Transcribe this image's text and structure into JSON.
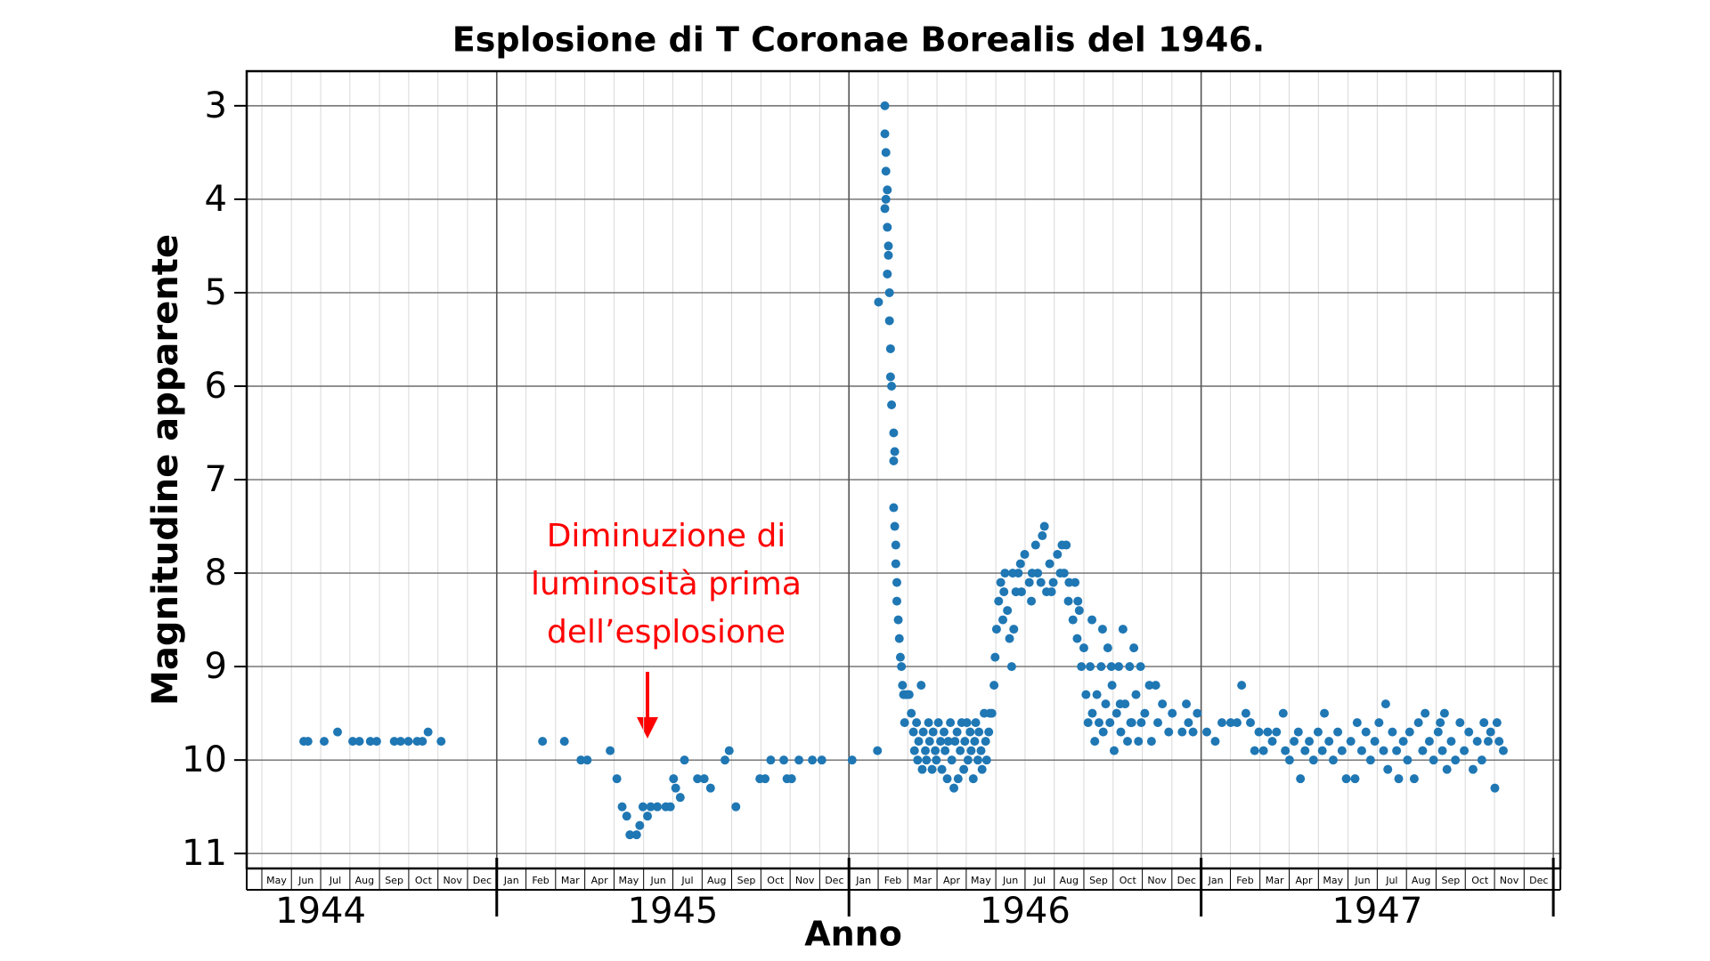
{
  "chart_data": {
    "type": "scatter",
    "title": "Esplosione di T Coronae Borealis del 1946.",
    "x_label": "Anno",
    "y_label": "Magnitudine apparente",
    "annotation": [
      "Diminuzione di",
      "luminosità prima",
      "dell’esplosione"
    ],
    "annotation_color": "#ff0000",
    "color": "#1f77b4",
    "grid": true,
    "ylim": [
      11.16,
      2.63
    ],
    "yticks": [
      3,
      4,
      5,
      6,
      7,
      8,
      9,
      10,
      11
    ],
    "xlim": [
      1944.29,
      1948.02
    ],
    "xticks": [
      1945,
      1946,
      1947,
      1948
    ],
    "year_labels": [
      1944,
      1945,
      1946,
      1947
    ],
    "month_ticks": [
      {
        "value": 1944.333,
        "label": "May"
      },
      {
        "value": 1944.417,
        "label": "Jun"
      },
      {
        "value": 1944.5,
        "label": "Jul"
      },
      {
        "value": 1944.583,
        "label": "Aug"
      },
      {
        "value": 1944.667,
        "label": "Sep"
      },
      {
        "value": 1944.75,
        "label": "Oct"
      },
      {
        "value": 1944.833,
        "label": "Nov"
      },
      {
        "value": 1944.917,
        "label": "Dec"
      },
      {
        "value": 1945.0,
        "label": "Jan"
      },
      {
        "value": 1945.083,
        "label": "Feb"
      },
      {
        "value": 1945.167,
        "label": "Mar"
      },
      {
        "value": 1945.25,
        "label": "Apr"
      },
      {
        "value": 1945.333,
        "label": "May"
      },
      {
        "value": 1945.417,
        "label": "Jun"
      },
      {
        "value": 1945.5,
        "label": "Jul"
      },
      {
        "value": 1945.583,
        "label": "Aug"
      },
      {
        "value": 1945.667,
        "label": "Sep"
      },
      {
        "value": 1945.75,
        "label": "Oct"
      },
      {
        "value": 1945.833,
        "label": "Nov"
      },
      {
        "value": 1945.917,
        "label": "Dec"
      },
      {
        "value": 1946.0,
        "label": "Jan"
      },
      {
        "value": 1946.083,
        "label": "Feb"
      },
      {
        "value": 1946.167,
        "label": "Mar"
      },
      {
        "value": 1946.25,
        "label": "Apr"
      },
      {
        "value": 1946.333,
        "label": "May"
      },
      {
        "value": 1946.417,
        "label": "Jun"
      },
      {
        "value": 1946.5,
        "label": "Jul"
      },
      {
        "value": 1946.583,
        "label": "Aug"
      },
      {
        "value": 1946.667,
        "label": "Sep"
      },
      {
        "value": 1946.75,
        "label": "Oct"
      },
      {
        "value": 1946.833,
        "label": "Nov"
      },
      {
        "value": 1946.917,
        "label": "Dec"
      },
      {
        "value": 1947.0,
        "label": "Jan"
      },
      {
        "value": 1947.083,
        "label": "Feb"
      },
      {
        "value": 1947.167,
        "label": "Mar"
      },
      {
        "value": 1947.25,
        "label": "Apr"
      },
      {
        "value": 1947.333,
        "label": "May"
      },
      {
        "value": 1947.417,
        "label": "Jun"
      },
      {
        "value": 1947.5,
        "label": "Jul"
      },
      {
        "value": 1947.583,
        "label": "Aug"
      },
      {
        "value": 1947.667,
        "label": "Sep"
      },
      {
        "value": 1947.75,
        "label": "Oct"
      },
      {
        "value": 1947.833,
        "label": "Nov"
      },
      {
        "value": 1947.917,
        "label": "Dec"
      }
    ],
    "x": [
      1944.452,
      1944.464,
      1944.51,
      1944.548,
      1944.591,
      1944.61,
      1944.641,
      1944.659,
      1944.709,
      1944.727,
      1944.749,
      1944.774,
      1944.789,
      1944.805,
      1944.842,
      1945.13,
      1945.192,
      1945.239,
      1945.257,
      1945.322,
      1945.341,
      1945.356,
      1945.369,
      1945.378,
      1945.397,
      1945.406,
      1945.415,
      1945.428,
      1945.437,
      1945.456,
      1945.48,
      1945.493,
      1945.502,
      1945.508,
      1945.521,
      1945.533,
      1945.57,
      1945.589,
      1945.607,
      1945.648,
      1945.66,
      1945.679,
      1945.747,
      1945.762,
      1945.778,
      1945.815,
      1945.824,
      1945.837,
      1945.858,
      1945.896,
      1945.923,
      1946.009,
      1946.081,
      1946.084,
      1946.102,
      1946.102,
      1946.105,
      1946.105,
      1946.109,
      1946.102,
      1946.109,
      1946.112,
      1946.112,
      1946.105,
      1946.109,
      1946.115,
      1946.115,
      1946.118,
      1946.118,
      1946.121,
      1946.121,
      1946.127,
      1946.127,
      1946.13,
      1946.127,
      1946.13,
      1946.133,
      1946.133,
      1946.136,
      1946.136,
      1946.14,
      1946.143,
      1946.146,
      1946.149,
      1946.152,
      1946.155,
      1946.158,
      1946.164,
      1946.171,
      1946.177,
      1946.183,
      1946.186,
      1946.192,
      1946.195,
      1946.198,
      1946.205,
      1946.208,
      1946.211,
      1946.217,
      1946.22,
      1946.226,
      1946.229,
      1946.236,
      1946.239,
      1946.245,
      1946.248,
      1946.254,
      1946.26,
      1946.264,
      1946.27,
      1946.273,
      1946.279,
      1946.282,
      1946.288,
      1946.292,
      1946.298,
      1946.301,
      1946.307,
      1946.31,
      1946.316,
      1946.32,
      1946.326,
      1946.329,
      1946.335,
      1946.338,
      1946.344,
      1946.347,
      1946.353,
      1946.357,
      1946.36,
      1946.366,
      1946.369,
      1946.375,
      1946.378,
      1946.384,
      1946.388,
      1946.391,
      1946.397,
      1946.4,
      1946.406,
      1946.412,
      1946.415,
      1946.419,
      1946.425,
      1946.431,
      1946.437,
      1946.443,
      1946.45,
      1946.456,
      1946.462,
      1946.468,
      1946.474,
      1946.481,
      1946.487,
      1946.499,
      1946.512,
      1946.518,
      1946.53,
      1946.536,
      1946.549,
      1946.555,
      1946.561,
      1946.57,
      1946.58,
      1946.592,
      1946.605,
      1946.611,
      1946.617,
      1946.623,
      1946.636,
      1946.642,
      1946.648,
      1946.654,
      1946.66,
      1946.667,
      1946.673,
      1946.679,
      1946.685,
      1946.691,
      1946.698,
      1946.704,
      1946.71,
      1946.716,
      1946.722,
      1946.729,
      1946.735,
      1946.741,
      1946.747,
      1946.753,
      1946.76,
      1946.766,
      1946.772,
      1946.778,
      1946.784,
      1946.791,
      1946.797,
      1946.803,
      1946.809,
      1946.815,
      1946.822,
      1946.828,
      1946.84,
      1946.853,
      1946.859,
      1946.871,
      1946.877,
      1946.89,
      1946.908,
      1946.918,
      1946.946,
      1946.958,
      1946.964,
      1946.977,
      1946.989,
      1946.44,
      1946.465,
      1946.49,
      1946.52,
      1946.545,
      1946.575,
      1946.6,
      1946.625,
      1946.65,
      1946.69,
      1946.72,
      1946.745,
      1946.77,
      1946.8,
      1946.83,
      1947.016,
      1947.04,
      1947.059,
      1947.084,
      1947.102,
      1947.115,
      1947.127,
      1947.14,
      1947.152,
      1947.164,
      1947.177,
      1947.189,
      1947.202,
      1947.214,
      1947.233,
      1947.239,
      1947.251,
      1947.264,
      1947.276,
      1947.282,
      1947.295,
      1947.307,
      1947.319,
      1947.332,
      1947.344,
      1947.35,
      1947.363,
      1947.375,
      1947.388,
      1947.4,
      1947.412,
      1947.425,
      1947.437,
      1947.443,
      1947.456,
      1947.468,
      1947.481,
      1947.493,
      1947.505,
      1947.518,
      1947.524,
      1947.53,
      1947.543,
      1947.555,
      1947.561,
      1947.574,
      1947.586,
      1947.592,
      1947.605,
      1947.617,
      1947.629,
      1947.636,
      1947.648,
      1947.66,
      1947.673,
      1947.679,
      1947.685,
      1947.691,
      1947.698,
      1947.71,
      1947.722,
      1947.735,
      1947.747,
      1947.76,
      1947.772,
      1947.784,
      1947.797,
      1947.803,
      1947.815,
      1947.822,
      1947.834,
      1947.84,
      1947.846,
      1947.858
    ],
    "values": [
      9.8,
      9.8,
      9.8,
      9.7,
      9.8,
      9.8,
      9.8,
      9.8,
      9.8,
      9.8,
      9.8,
      9.8,
      9.8,
      9.7,
      9.8,
      9.8,
      9.8,
      10.0,
      10.0,
      9.9,
      10.2,
      10.5,
      10.6,
      10.8,
      10.8,
      10.7,
      10.5,
      10.6,
      10.5,
      10.5,
      10.5,
      10.5,
      10.2,
      10.3,
      10.4,
      10.0,
      10.2,
      10.2,
      10.3,
      10.0,
      9.9,
      10.5,
      10.2,
      10.2,
      10.0,
      10.0,
      10.2,
      10.2,
      10.0,
      10.0,
      10.0,
      10.0,
      9.9,
      5.1,
      3.0,
      3.3,
      3.5,
      3.7,
      3.9,
      4.1,
      4.3,
      4.5,
      4.6,
      4.0,
      4.8,
      5.0,
      5.3,
      5.6,
      5.9,
      6.2,
      6.0,
      6.5,
      6.8,
      6.7,
      7.3,
      7.5,
      7.7,
      7.9,
      8.1,
      8.3,
      8.5,
      8.7,
      8.9,
      9.0,
      9.2,
      9.3,
      9.6,
      9.3,
      9.3,
      9.5,
      9.7,
      9.9,
      9.6,
      10.0,
      9.8,
      9.2,
      10.1,
      9.7,
      9.9,
      10.0,
      9.6,
      9.8,
      10.1,
      9.7,
      9.9,
      10.0,
      9.6,
      9.8,
      10.1,
      9.7,
      9.9,
      10.2,
      9.8,
      9.6,
      10.0,
      10.3,
      9.8,
      9.7,
      10.2,
      9.9,
      9.6,
      10.1,
      9.8,
      9.6,
      10.0,
      9.7,
      9.9,
      10.2,
      9.8,
      9.6,
      10.0,
      9.7,
      9.9,
      10.1,
      9.5,
      9.8,
      10.0,
      9.7,
      9.5,
      9.5,
      9.2,
      8.9,
      8.6,
      8.3,
      8.1,
      8.5,
      8.0,
      8.4,
      8.7,
      9.0,
      8.6,
      8.2,
      8.0,
      7.9,
      7.8,
      8.1,
      8.3,
      7.7,
      8.0,
      7.6,
      7.5,
      8.2,
      7.9,
      8.1,
      7.8,
      7.7,
      8.0,
      7.7,
      8.3,
      8.5,
      8.1,
      8.7,
      8.4,
      9.0,
      8.8,
      9.3,
      9.6,
      9.0,
      9.5,
      9.8,
      9.3,
      9.6,
      9.0,
      9.7,
      9.4,
      8.8,
      9.6,
      9.2,
      9.9,
      9.5,
      9.0,
      9.7,
      8.6,
      9.4,
      9.8,
      9.0,
      9.6,
      8.8,
      9.3,
      9.8,
      9.0,
      9.5,
      9.2,
      9.8,
      9.2,
      9.6,
      9.4,
      9.7,
      9.5,
      9.7,
      9.4,
      9.6,
      9.7,
      9.5,
      8.2,
      8.0,
      8.2,
      8.0,
      8.1,
      8.2,
      8.0,
      8.1,
      8.3,
      8.5,
      8.6,
      9.0,
      9.4,
      9.6,
      9.6,
      9.7,
      9.8,
      9.6,
      9.6,
      9.6,
      9.2,
      9.5,
      9.6,
      9.9,
      9.7,
      9.9,
      9.7,
      9.8,
      9.7,
      9.5,
      9.9,
      10.0,
      9.8,
      9.7,
      10.2,
      9.9,
      9.8,
      10.0,
      9.7,
      9.9,
      9.5,
      9.8,
      10.0,
      9.7,
      9.9,
      10.2,
      9.8,
      10.2,
      9.6,
      9.9,
      9.7,
      10.0,
      9.8,
      9.6,
      9.9,
      9.4,
      10.1,
      9.7,
      9.9,
      10.2,
      9.8,
      10.0,
      9.7,
      10.2,
      9.6,
      9.9,
      9.5,
      9.8,
      10.0,
      9.7,
      9.6,
      9.9,
      9.5,
      10.1,
      9.8,
      10.0,
      9.6,
      9.9,
      9.7,
      10.1,
      9.8,
      10.0,
      9.6,
      9.8,
      9.7,
      10.3,
      9.6,
      9.8,
      9.9
    ]
  }
}
